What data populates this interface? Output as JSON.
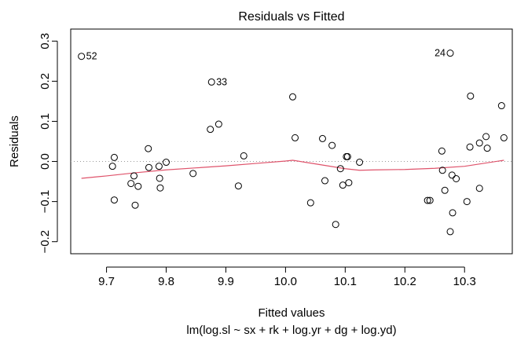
{
  "chart_data": {
    "type": "scatter",
    "title": "Residuals vs Fitted",
    "xlabel": "Fitted values",
    "subtitle": "lm(log.sl ~ sx + rk + log.yr + dg + log.yd)",
    "ylabel": "Residuals",
    "xlim": [
      9.64,
      10.38
    ],
    "ylim": [
      -0.23,
      0.33
    ],
    "xticks": [
      9.7,
      9.8,
      9.9,
      10.0,
      10.1,
      10.2,
      10.3
    ],
    "xtick_labels": [
      "9.7",
      "9.8",
      "9.9",
      "10.0",
      "10.1",
      "10.2",
      "10.3"
    ],
    "yticks": [
      -0.2,
      -0.1,
      0.0,
      0.1,
      0.2,
      0.3
    ],
    "ytick_labels": [
      "−0.2",
      "−0.1",
      "0.0",
      "0.1",
      "0.2",
      "0.3"
    ],
    "reference_line_y": 0,
    "labeled_points": [
      {
        "label": "52",
        "x": 9.658,
        "y": 0.262
      },
      {
        "label": "33",
        "x": 9.876,
        "y": 0.198
      },
      {
        "label": "24",
        "x": 10.276,
        "y": 0.27
      }
    ],
    "points": [
      {
        "x": 9.71,
        "y": -0.012
      },
      {
        "x": 9.713,
        "y": 0.01
      },
      {
        "x": 9.713,
        "y": -0.096
      },
      {
        "x": 9.741,
        "y": -0.055
      },
      {
        "x": 9.746,
        "y": -0.036
      },
      {
        "x": 9.748,
        "y": -0.109
      },
      {
        "x": 9.753,
        "y": -0.062
      },
      {
        "x": 9.77,
        "y": 0.032
      },
      {
        "x": 9.771,
        "y": -0.015
      },
      {
        "x": 9.788,
        "y": -0.012
      },
      {
        "x": 9.789,
        "y": -0.042
      },
      {
        "x": 9.79,
        "y": -0.066
      },
      {
        "x": 9.8,
        "y": -0.002
      },
      {
        "x": 9.845,
        "y": -0.03
      },
      {
        "x": 9.874,
        "y": 0.08
      },
      {
        "x": 9.888,
        "y": 0.093
      },
      {
        "x": 9.921,
        "y": -0.061
      },
      {
        "x": 9.93,
        "y": 0.014
      },
      {
        "x": 10.012,
        "y": 0.161
      },
      {
        "x": 10.016,
        "y": 0.059
      },
      {
        "x": 10.042,
        "y": -0.103
      },
      {
        "x": 10.062,
        "y": 0.057
      },
      {
        "x": 10.066,
        "y": -0.048
      },
      {
        "x": 10.078,
        "y": 0.04
      },
      {
        "x": 10.084,
        "y": -0.157
      },
      {
        "x": 10.092,
        "y": -0.018
      },
      {
        "x": 10.096,
        "y": -0.059
      },
      {
        "x": 10.102,
        "y": 0.012
      },
      {
        "x": 10.104,
        "y": 0.012
      },
      {
        "x": 10.106,
        "y": -0.053
      },
      {
        "x": 10.124,
        "y": -0.002
      },
      {
        "x": 10.238,
        "y": -0.097
      },
      {
        "x": 10.242,
        "y": -0.097
      },
      {
        "x": 10.262,
        "y": 0.026
      },
      {
        "x": 10.263,
        "y": -0.022
      },
      {
        "x": 10.267,
        "y": -0.072
      },
      {
        "x": 10.276,
        "y": -0.175
      },
      {
        "x": 10.279,
        "y": -0.034
      },
      {
        "x": 10.28,
        "y": -0.128
      },
      {
        "x": 10.286,
        "y": -0.043
      },
      {
        "x": 10.304,
        "y": -0.1
      },
      {
        "x": 10.309,
        "y": 0.036
      },
      {
        "x": 10.31,
        "y": 0.163
      },
      {
        "x": 10.325,
        "y": -0.067
      },
      {
        "x": 10.325,
        "y": 0.046
      },
      {
        "x": 10.336,
        "y": 0.062
      },
      {
        "x": 10.338,
        "y": 0.033
      },
      {
        "x": 10.362,
        "y": 0.139
      },
      {
        "x": 10.366,
        "y": 0.059
      }
    ],
    "smooth_line": {
      "name": "lowess",
      "color": "#DF536B",
      "x": [
        9.658,
        9.7,
        9.75,
        9.8,
        9.85,
        9.9,
        9.95,
        10.0,
        10.012,
        10.05,
        10.1,
        10.124,
        10.15,
        10.2,
        10.25,
        10.3,
        10.366
      ],
      "y": [
        -0.042,
        -0.036,
        -0.028,
        -0.021,
        -0.016,
        -0.011,
        -0.005,
        0.001,
        0.003,
        -0.006,
        -0.018,
        -0.022,
        -0.021,
        -0.02,
        -0.017,
        -0.012,
        0.003
      ]
    }
  }
}
